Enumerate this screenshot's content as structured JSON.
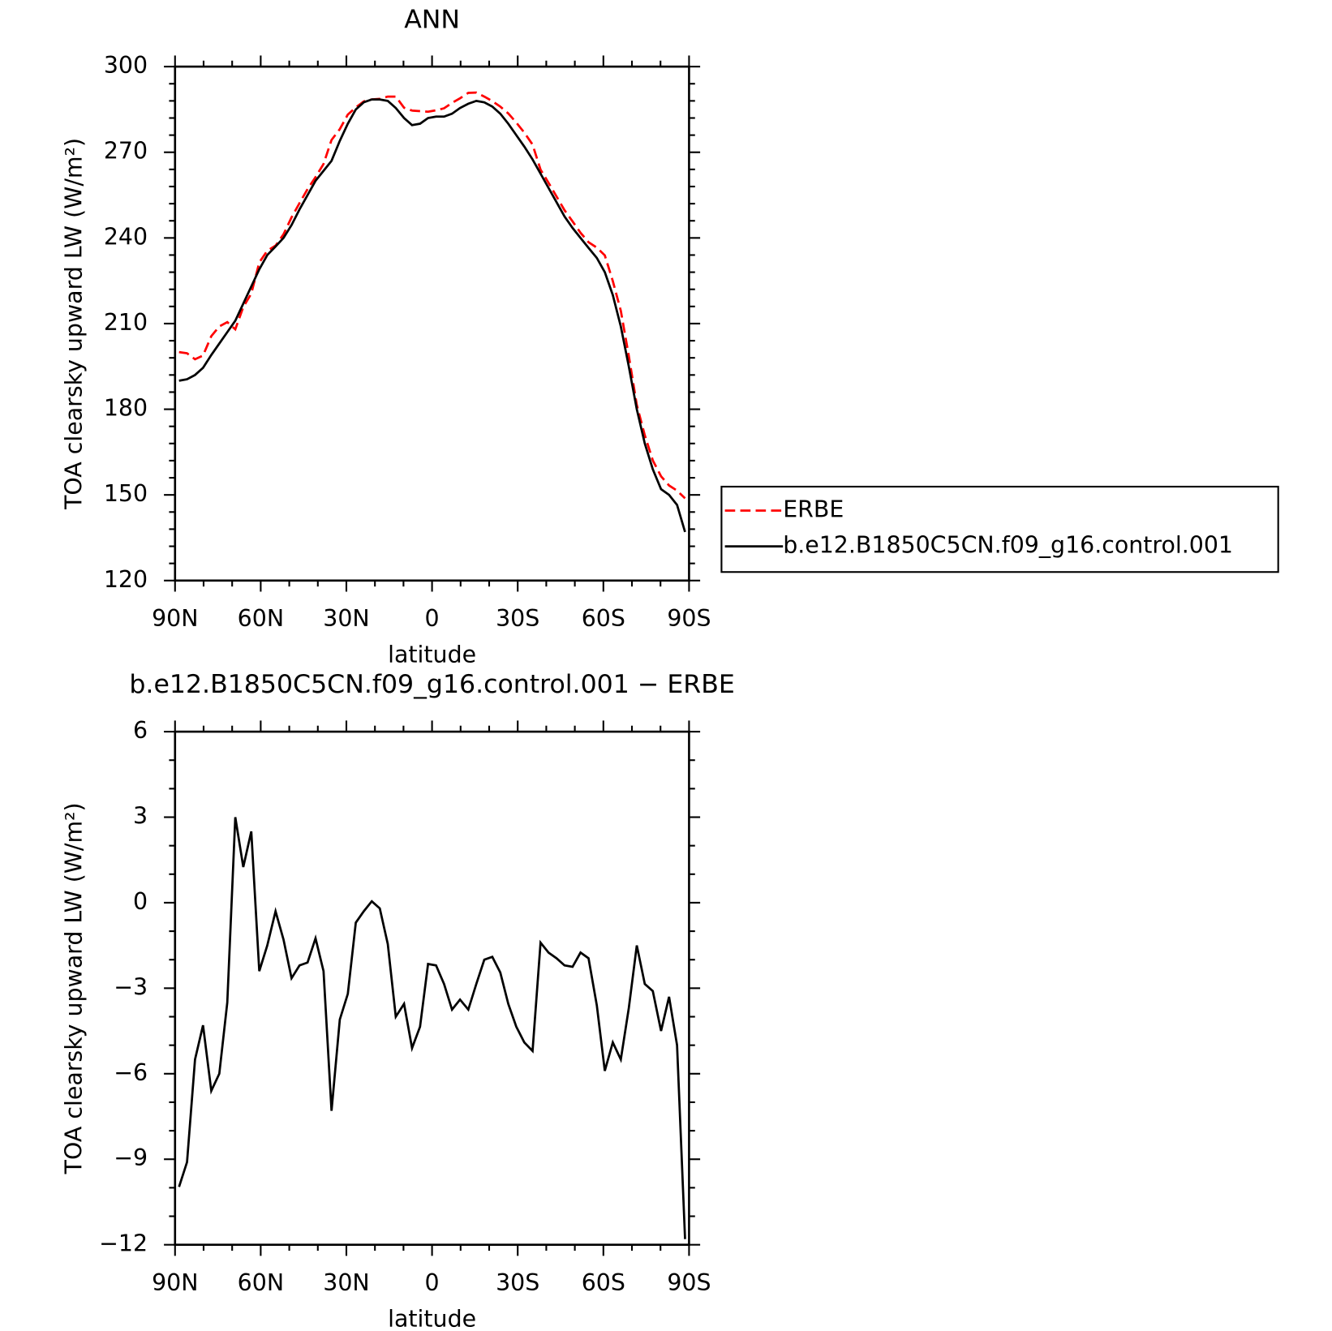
{
  "chart_data": [
    {
      "type": "line",
      "title": "ANN",
      "xlabel": "latitude",
      "ylabel": "TOA clearsky upward LW (W/m²)",
      "x": [
        88.6,
        85.8,
        83.0,
        80.2,
        77.3,
        74.5,
        71.7,
        68.9,
        66.1,
        63.3,
        60.5,
        57.7,
        54.8,
        52.0,
        49.2,
        46.4,
        43.6,
        40.8,
        38.0,
        35.2,
        32.3,
        29.5,
        26.7,
        23.9,
        21.1,
        18.3,
        15.5,
        12.7,
        9.8,
        7.0,
        4.2,
        1.4,
        -1.4,
        -4.2,
        -7.0,
        -9.8,
        -12.7,
        -15.5,
        -18.3,
        -21.1,
        -23.9,
        -26.7,
        -29.5,
        -32.3,
        -35.2,
        -38.0,
        -40.8,
        -43.6,
        -46.4,
        -49.2,
        -52.0,
        -54.8,
        -57.7,
        -60.5,
        -63.3,
        -66.1,
        -68.9,
        -71.7,
        -74.5,
        -77.3,
        -80.2,
        -83.0,
        -85.8,
        -88.6
      ],
      "series": [
        {
          "name": "ERBE",
          "color": "#ff0000",
          "style": "dashed",
          "values": [
            200.0,
            199.6,
            197.5,
            198.8,
            205.6,
            209.0,
            210.5,
            208.0,
            215.8,
            220.5,
            231.4,
            235.5,
            237.3,
            241.3,
            247.2,
            252.2,
            257.1,
            261.3,
            265.9,
            274.3,
            278.1,
            283.2,
            285.7,
            287.8,
            288.5,
            288.7,
            289.5,
            289.5,
            285.6,
            284.6,
            284.4,
            284.2,
            284.7,
            285.4,
            287.3,
            288.9,
            290.8,
            290.9,
            289.5,
            287.9,
            286.0,
            283.6,
            280.4,
            276.9,
            272.7,
            263.9,
            259.3,
            254.5,
            249.7,
            245.8,
            241.8,
            238.5,
            236.6,
            233.9,
            224.9,
            214.5,
            198.7,
            181.5,
            170.9,
            162.1,
            156.5,
            153.3,
            151.5,
            148.8
          ]
        },
        {
          "name": "b.e12.B1850C5CN.f09_g16.control.001",
          "color": "#000000",
          "style": "solid",
          "values": [
            190,
            190.5,
            192,
            194.5,
            199,
            203,
            207,
            211,
            217,
            223,
            229,
            234,
            237,
            240,
            244.5,
            250,
            255,
            260,
            263.5,
            267,
            274,
            280,
            285,
            287.5,
            288.5,
            288.5,
            288,
            285.5,
            282,
            279.5,
            280,
            282,
            282.5,
            282.5,
            283.5,
            285.5,
            287,
            288,
            287.5,
            286,
            283.5,
            280,
            276,
            272,
            267.5,
            262.5,
            257.5,
            252.5,
            247.5,
            243.5,
            240,
            236.5,
            233,
            228,
            220,
            209,
            195,
            180,
            168,
            159,
            152,
            150,
            146.5,
            137
          ]
        }
      ],
      "xlim": [
        90,
        -90
      ],
      "xticks": [
        {
          "value": 90,
          "label": "90N"
        },
        {
          "value": 60,
          "label": "60N"
        },
        {
          "value": 30,
          "label": "30N"
        },
        0,
        {
          "value": -30,
          "label": "30S"
        },
        {
          "value": -60,
          "label": "60S"
        },
        {
          "value": -90,
          "label": "90S"
        }
      ],
      "ylim": [
        120,
        300
      ],
      "yticks": [
        120,
        150,
        180,
        210,
        240,
        270,
        300
      ],
      "legend": "right"
    },
    {
      "type": "line",
      "title": "b.e12.B1850C5CN.f09_g16.control.001 − ERBE",
      "xlabel": "latitude",
      "ylabel": "TOA clearsky upward LW (W/m²)",
      "x": [
        88.6,
        85.8,
        83.0,
        80.2,
        77.3,
        74.5,
        71.7,
        68.9,
        66.1,
        63.3,
        60.5,
        57.7,
        54.8,
        52.0,
        49.2,
        46.4,
        43.6,
        40.8,
        38.0,
        35.2,
        32.3,
        29.5,
        26.7,
        23.9,
        21.1,
        18.3,
        15.5,
        12.7,
        9.8,
        7.0,
        4.2,
        1.4,
        -1.4,
        -4.2,
        -7.0,
        -9.8,
        -12.7,
        -15.5,
        -18.3,
        -21.1,
        -23.9,
        -26.7,
        -29.5,
        -32.3,
        -35.2,
        -38.0,
        -40.8,
        -43.6,
        -46.4,
        -49.2,
        -52.0,
        -54.8,
        -57.7,
        -60.5,
        -63.3,
        -66.1,
        -68.9,
        -71.7,
        -74.5,
        -77.3,
        -80.2,
        -83.0,
        -85.8,
        -88.6
      ],
      "series": [
        {
          "color": "#000000",
          "style": "solid",
          "values": [
            -9.97,
            -9.1,
            -5.5,
            -4.3,
            -6.6,
            -6.0,
            -3.5,
            3.0,
            1.25,
            2.5,
            -2.4,
            -1.5,
            -0.3,
            -1.3,
            -2.65,
            -2.2,
            -2.1,
            -1.25,
            -2.4,
            -7.3,
            -4.1,
            -3.2,
            -0.7,
            -0.3,
            0.05,
            -0.2,
            -1.45,
            -4.0,
            -3.55,
            -5.1,
            -4.35,
            -2.15,
            -2.2,
            -2.85,
            -3.75,
            -3.4,
            -3.75,
            -2.85,
            -2.0,
            -1.9,
            -2.45,
            -3.55,
            -4.35,
            -4.9,
            -5.2,
            -1.4,
            -1.75,
            -1.95,
            -2.2,
            -2.25,
            -1.75,
            -1.95,
            -3.6,
            -5.9,
            -4.9,
            -5.5,
            -3.7,
            -1.5,
            -2.85,
            -3.1,
            -4.5,
            -3.3,
            -5.0,
            -11.8
          ]
        }
      ],
      "xlim": [
        90,
        -90
      ],
      "xticks": [
        {
          "value": 90,
          "label": "90N"
        },
        {
          "value": 60,
          "label": "60N"
        },
        {
          "value": 30,
          "label": "30N"
        },
        0,
        {
          "value": -30,
          "label": "30S"
        },
        {
          "value": -60,
          "label": "60S"
        },
        {
          "value": -90,
          "label": "90S"
        }
      ],
      "ylim": [
        -12,
        6
      ],
      "yticks": [
        {
          "value": -12,
          "label": "−12"
        },
        {
          "value": -9,
          "label": "−9"
        },
        {
          "value": -6,
          "label": "−6"
        },
        {
          "value": -3,
          "label": "−3"
        },
        0,
        3,
        6
      ]
    }
  ]
}
